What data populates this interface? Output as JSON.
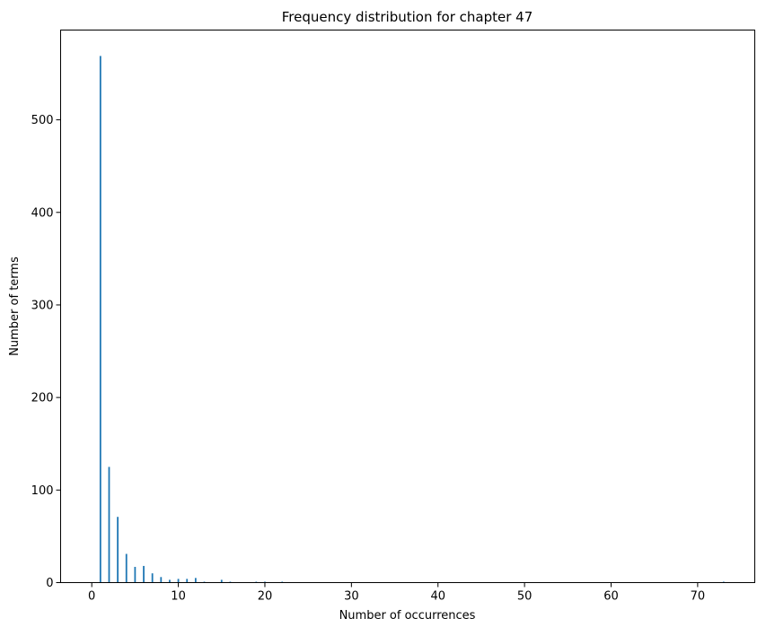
{
  "chart_data": {
    "type": "bar",
    "title": "Frequency distribution for chapter 47",
    "xlabel": "Number of occurrences",
    "ylabel": "Number of terms",
    "xlim": [
      -3.6,
      76.6
    ],
    "ylim": [
      0,
      597
    ],
    "xticks": [
      0,
      10,
      20,
      30,
      40,
      50,
      60,
      70
    ],
    "yticks": [
      0,
      100,
      200,
      300,
      400,
      500
    ],
    "grid": false,
    "bar_color": "#1f77b4",
    "x": [
      1,
      2,
      3,
      4,
      5,
      6,
      7,
      8,
      9,
      10,
      11,
      12,
      13,
      15,
      16,
      19,
      20,
      22,
      73
    ],
    "values": [
      569,
      125,
      71,
      31,
      17,
      18,
      10,
      6,
      3,
      4,
      4,
      5,
      1,
      3,
      1,
      1,
      1,
      1,
      1
    ]
  }
}
